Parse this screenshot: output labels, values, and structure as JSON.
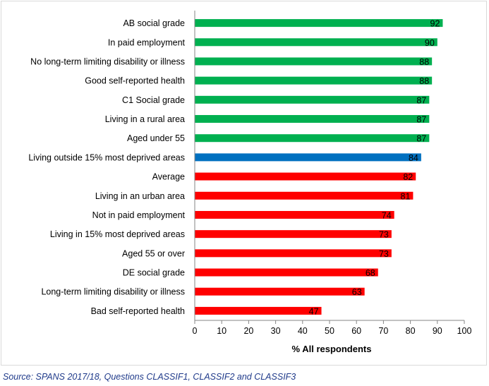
{
  "chart_data": {
    "type": "bar",
    "orientation": "horizontal",
    "categories": [
      "AB social grade",
      "In paid employment",
      "No long-term limiting disability or illness",
      "Good self-reported health",
      "C1 Social grade",
      "Living in a rural area",
      "Aged under 55",
      "Living outside 15% most deprived areas",
      "Average",
      "Living in an urban area",
      "Not in paid employment",
      "Living in 15% most deprived areas",
      "Aged 55 or over",
      "DE social grade",
      "Long-term limiting disability or illness",
      "Bad self-reported health"
    ],
    "values": [
      92,
      90,
      88,
      88,
      87,
      87,
      87,
      84,
      82,
      81,
      74,
      73,
      73,
      68,
      63,
      47
    ],
    "bar_colors": [
      "#00b050",
      "#00b050",
      "#00b050",
      "#00b050",
      "#00b050",
      "#00b050",
      "#00b050",
      "#0070c0",
      "#ff0000",
      "#ff0000",
      "#ff0000",
      "#ff0000",
      "#ff0000",
      "#ff0000",
      "#ff0000",
      "#ff0000"
    ],
    "xlabel": "% All respondents",
    "ylabel": "",
    "xlim": [
      0,
      100
    ],
    "xticks": [
      0,
      10,
      20,
      30,
      40,
      50,
      60,
      70,
      80,
      90,
      100
    ],
    "grid": false,
    "legend": "none"
  },
  "source_note": "Source: SPANS 2017/18, Questions CLASSIF1, CLASSIF2 and CLASSIF3"
}
